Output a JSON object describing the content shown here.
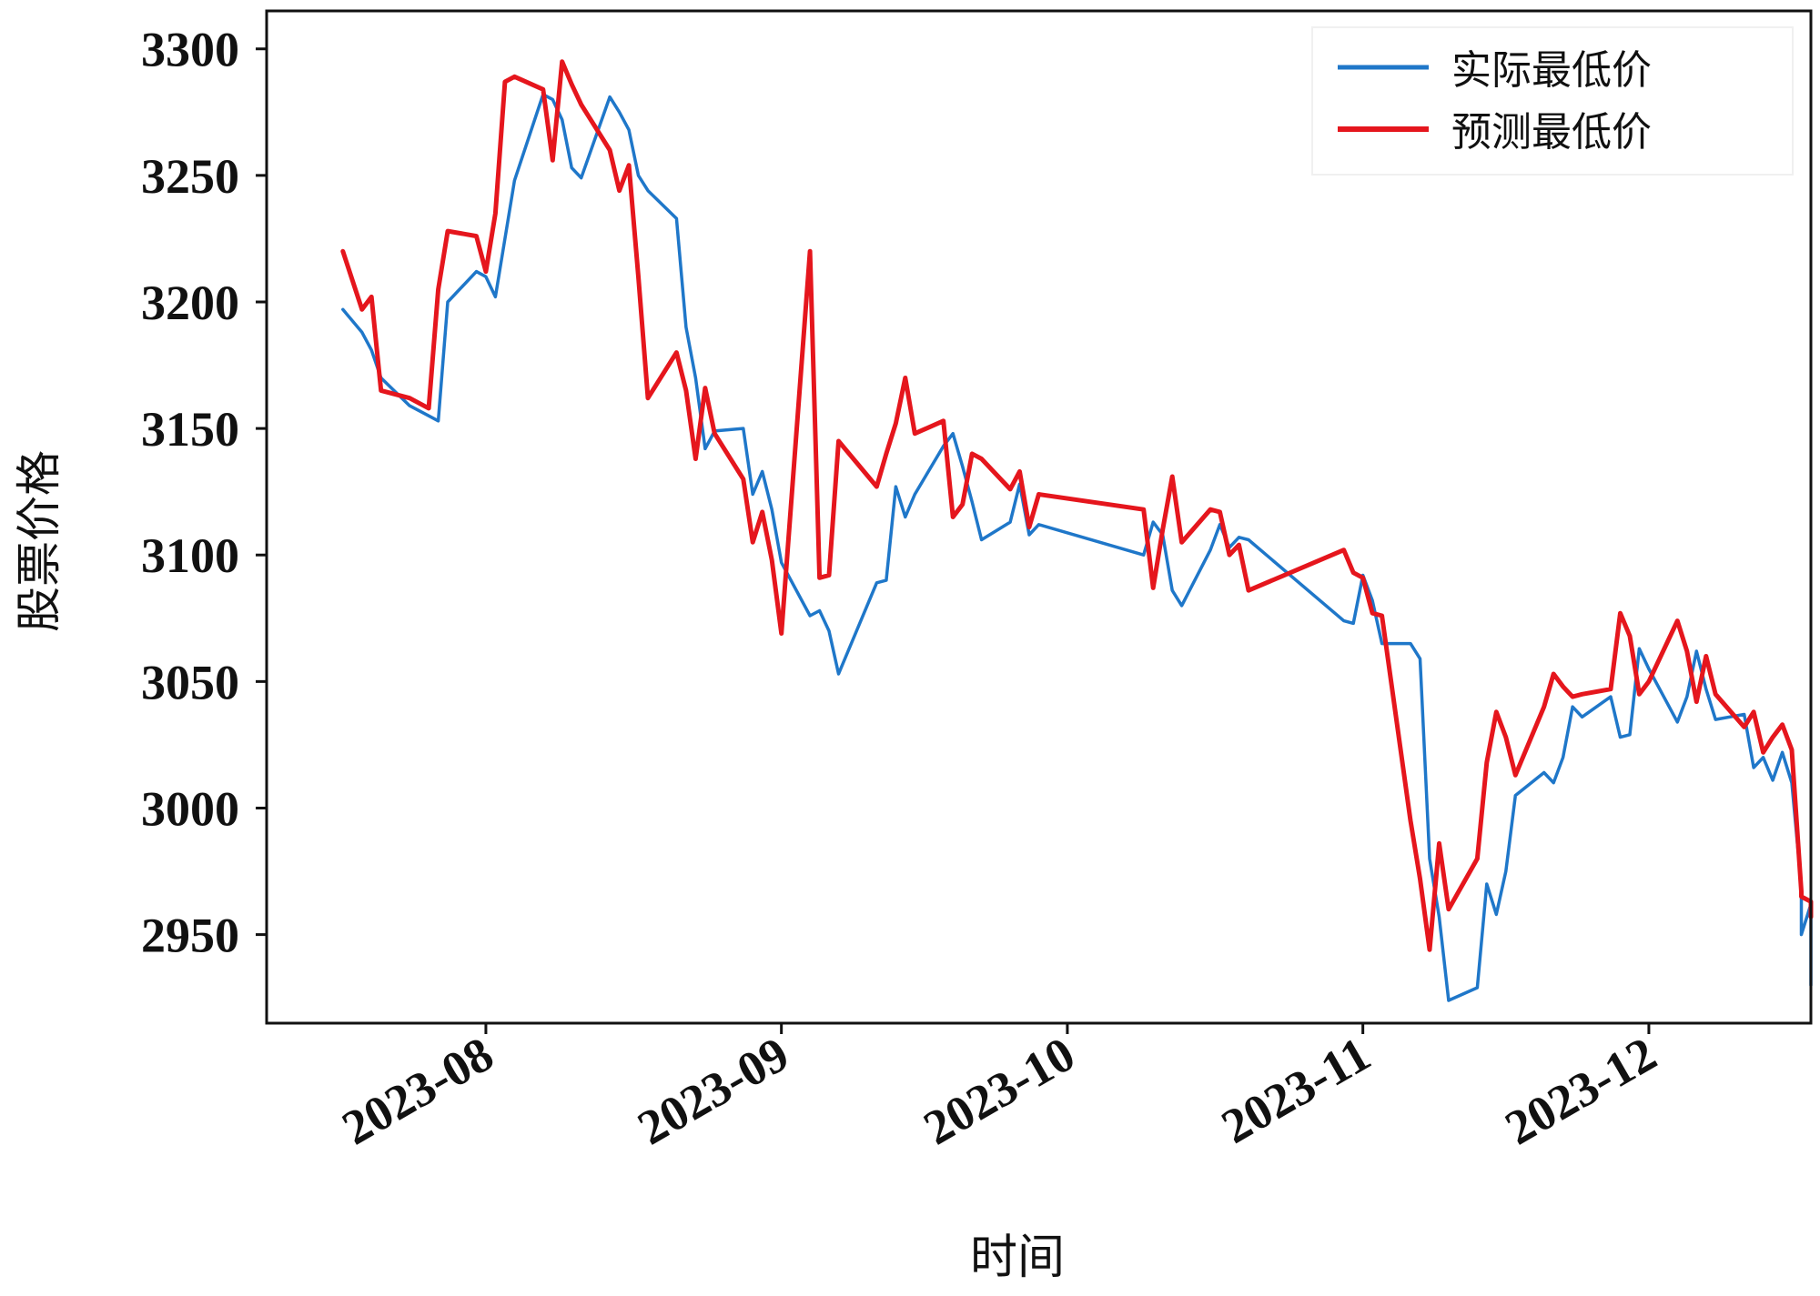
{
  "chart_data": {
    "type": "line",
    "title": "",
    "xlabel": "时间",
    "ylabel": "股票价格",
    "ylim": [
      2915,
      3315
    ],
    "xlim": [
      "2023-07-09",
      "2023-12-18"
    ],
    "grid": false,
    "legend_position": "top-right",
    "y_ticks": [
      2950,
      3000,
      3050,
      3100,
      3150,
      3200,
      3250,
      3300
    ],
    "x_ticks": [
      {
        "date": "2023-08-01",
        "label": "2023-08"
      },
      {
        "date": "2023-09-01",
        "label": "2023-09"
      },
      {
        "date": "2023-10-01",
        "label": "2023-10"
      },
      {
        "date": "2023-11-01",
        "label": "2023-11"
      },
      {
        "date": "2023-12-01",
        "label": "2023-12"
      }
    ],
    "series": [
      {
        "name": "实际最低价",
        "color": "#1f77c9",
        "points": [
          [
            "2023-07-17",
            3197
          ],
          [
            "2023-07-19",
            3188
          ],
          [
            "2023-07-20",
            3181
          ],
          [
            "2023-07-21",
            3170
          ],
          [
            "2023-07-24",
            3159
          ],
          [
            "2023-07-26",
            3155
          ],
          [
            "2023-07-27",
            3153
          ],
          [
            "2023-07-28",
            3200
          ],
          [
            "2023-07-31",
            3212
          ],
          [
            "2023-08-01",
            3210
          ],
          [
            "2023-08-02",
            3202
          ],
          [
            "2023-08-03",
            3225
          ],
          [
            "2023-08-04",
            3248
          ],
          [
            "2023-08-07",
            3282
          ],
          [
            "2023-08-08",
            3280
          ],
          [
            "2023-08-09",
            3272
          ],
          [
            "2023-08-10",
            3253
          ],
          [
            "2023-08-11",
            3249
          ],
          [
            "2023-08-14",
            3281
          ],
          [
            "2023-08-15",
            3275
          ],
          [
            "2023-08-16",
            3268
          ],
          [
            "2023-08-17",
            3250
          ],
          [
            "2023-08-18",
            3244
          ],
          [
            "2023-08-21",
            3233
          ],
          [
            "2023-08-22",
            3190
          ],
          [
            "2023-08-23",
            3170
          ],
          [
            "2023-08-24",
            3142
          ],
          [
            "2023-08-25",
            3149
          ],
          [
            "2023-08-28",
            3150
          ],
          [
            "2023-08-29",
            3124
          ],
          [
            "2023-08-30",
            3133
          ],
          [
            "2023-08-31",
            3118
          ],
          [
            "2023-09-01",
            3097
          ],
          [
            "2023-09-04",
            3076
          ],
          [
            "2023-09-05",
            3078
          ],
          [
            "2023-09-06",
            3070
          ],
          [
            "2023-09-07",
            3053
          ],
          [
            "2023-09-11",
            3089
          ],
          [
            "2023-09-12",
            3090
          ],
          [
            "2023-09-13",
            3127
          ],
          [
            "2023-09-14",
            3115
          ],
          [
            "2023-09-15",
            3124
          ],
          [
            "2023-09-18",
            3143
          ],
          [
            "2023-09-19",
            3148
          ],
          [
            "2023-09-20",
            3135
          ],
          [
            "2023-09-21",
            3121
          ],
          [
            "2023-09-22",
            3106
          ],
          [
            "2023-09-25",
            3113
          ],
          [
            "2023-09-26",
            3128
          ],
          [
            "2023-09-27",
            3108
          ],
          [
            "2023-09-28",
            3112
          ],
          [
            "2023-10-09",
            3100
          ],
          [
            "2023-10-10",
            3113
          ],
          [
            "2023-10-11",
            3108
          ],
          [
            "2023-10-12",
            3086
          ],
          [
            "2023-10-13",
            3080
          ],
          [
            "2023-10-16",
            3102
          ],
          [
            "2023-10-17",
            3112
          ],
          [
            "2023-10-18",
            3103
          ],
          [
            "2023-10-19",
            3107
          ],
          [
            "2023-10-20",
            3106
          ],
          [
            "2023-10-30",
            3074
          ],
          [
            "2023-10-31",
            3073
          ],
          [
            "2023-11-01",
            3092
          ],
          [
            "2023-11-02",
            3082
          ],
          [
            "2023-11-03",
            3065
          ],
          [
            "2023-11-06",
            3065
          ],
          [
            "2023-11-07",
            3059
          ],
          [
            "2023-11-08",
            2980
          ],
          [
            "2023-11-09",
            2957
          ],
          [
            "2023-11-10",
            2924
          ],
          [
            "2023-11-13",
            2929
          ],
          [
            "2023-11-14",
            2970
          ],
          [
            "2023-11-15",
            2958
          ],
          [
            "2023-11-16",
            2975
          ],
          [
            "2023-11-17",
            3005
          ],
          [
            "2023-11-20",
            3014
          ],
          [
            "2023-11-21",
            3010
          ],
          [
            "2023-11-22",
            3020
          ],
          [
            "2023-11-23",
            3040
          ],
          [
            "2023-11-24",
            3036
          ],
          [
            "2023-11-27",
            3044
          ],
          [
            "2023-11-28",
            3028
          ],
          [
            "2023-11-29",
            3029
          ],
          [
            "2023-11-30",
            3063
          ],
          [
            "2023-12-01",
            3055
          ],
          [
            "2023-12-04",
            3034
          ],
          [
            "2023-12-05",
            3044
          ],
          [
            "2023-12-06",
            3062
          ],
          [
            "2023-12-07",
            3047
          ],
          [
            "2023-12-08",
            3035
          ],
          [
            "2023-12-11",
            3037
          ],
          [
            "2023-12-12",
            3016
          ],
          [
            "2023-12-13",
            3020
          ],
          [
            "2023-12-14",
            3011
          ],
          [
            "2023-12-15",
            3022
          ],
          [
            "2023-12-16",
            3010
          ],
          [
            "2023-12-17",
            2969
          ],
          [
            "2023-12-17",
            2950
          ],
          [
            "2023-12-18",
            2962
          ],
          [
            "2023-12-18",
            2930
          ]
        ]
      },
      {
        "name": "预测最低价",
        "color": "#e5161d",
        "points": [
          [
            "2023-07-17",
            3220
          ],
          [
            "2023-07-19",
            3197
          ],
          [
            "2023-07-20",
            3202
          ],
          [
            "2023-07-21",
            3165
          ],
          [
            "2023-07-24",
            3162
          ],
          [
            "2023-07-26",
            3158
          ],
          [
            "2023-07-27",
            3205
          ],
          [
            "2023-07-28",
            3228
          ],
          [
            "2023-07-31",
            3226
          ],
          [
            "2023-08-01",
            3212
          ],
          [
            "2023-08-02",
            3235
          ],
          [
            "2023-08-03",
            3287
          ],
          [
            "2023-08-04",
            3289
          ],
          [
            "2023-08-07",
            3284
          ],
          [
            "2023-08-08",
            3256
          ],
          [
            "2023-08-09",
            3295
          ],
          [
            "2023-08-10",
            3286
          ],
          [
            "2023-08-11",
            3278
          ],
          [
            "2023-08-14",
            3260
          ],
          [
            "2023-08-15",
            3244
          ],
          [
            "2023-08-16",
            3254
          ],
          [
            "2023-08-17",
            3210
          ],
          [
            "2023-08-18",
            3162
          ],
          [
            "2023-08-21",
            3180
          ],
          [
            "2023-08-22",
            3165
          ],
          [
            "2023-08-23",
            3138
          ],
          [
            "2023-08-24",
            3166
          ],
          [
            "2023-08-25",
            3148
          ],
          [
            "2023-08-28",
            3130
          ],
          [
            "2023-08-29",
            3105
          ],
          [
            "2023-08-30",
            3117
          ],
          [
            "2023-08-31",
            3098
          ],
          [
            "2023-09-01",
            3069
          ],
          [
            "2023-09-04",
            3220
          ],
          [
            "2023-09-05",
            3091
          ],
          [
            "2023-09-06",
            3092
          ],
          [
            "2023-09-07",
            3145
          ],
          [
            "2023-09-11",
            3127
          ],
          [
            "2023-09-12",
            3140
          ],
          [
            "2023-09-13",
            3152
          ],
          [
            "2023-09-14",
            3170
          ],
          [
            "2023-09-15",
            3148
          ],
          [
            "2023-09-18",
            3153
          ],
          [
            "2023-09-19",
            3115
          ],
          [
            "2023-09-20",
            3120
          ],
          [
            "2023-09-21",
            3140
          ],
          [
            "2023-09-22",
            3138
          ],
          [
            "2023-09-25",
            3126
          ],
          [
            "2023-09-26",
            3133
          ],
          [
            "2023-09-27",
            3111
          ],
          [
            "2023-09-28",
            3124
          ],
          [
            "2023-10-09",
            3118
          ],
          [
            "2023-10-10",
            3087
          ],
          [
            "2023-10-11",
            3110
          ],
          [
            "2023-10-12",
            3131
          ],
          [
            "2023-10-13",
            3105
          ],
          [
            "2023-10-16",
            3118
          ],
          [
            "2023-10-17",
            3117
          ],
          [
            "2023-10-18",
            3100
          ],
          [
            "2023-10-19",
            3104
          ],
          [
            "2023-10-20",
            3086
          ],
          [
            "2023-10-30",
            3102
          ],
          [
            "2023-10-31",
            3093
          ],
          [
            "2023-11-01",
            3091
          ],
          [
            "2023-11-02",
            3077
          ],
          [
            "2023-11-03",
            3076
          ],
          [
            "2023-11-06",
            2995
          ],
          [
            "2023-11-07",
            2972
          ],
          [
            "2023-11-08",
            2944
          ],
          [
            "2023-11-09",
            2986
          ],
          [
            "2023-11-10",
            2960
          ],
          [
            "2023-11-13",
            2980
          ],
          [
            "2023-11-14",
            3018
          ],
          [
            "2023-11-15",
            3038
          ],
          [
            "2023-11-16",
            3028
          ],
          [
            "2023-11-17",
            3013
          ],
          [
            "2023-11-20",
            3040
          ],
          [
            "2023-11-21",
            3053
          ],
          [
            "2023-11-22",
            3048
          ],
          [
            "2023-11-23",
            3044
          ],
          [
            "2023-11-24",
            3045
          ],
          [
            "2023-11-27",
            3047
          ],
          [
            "2023-11-28",
            3077
          ],
          [
            "2023-11-29",
            3068
          ],
          [
            "2023-11-30",
            3045
          ],
          [
            "2023-12-01",
            3050
          ],
          [
            "2023-12-04",
            3074
          ],
          [
            "2023-12-05",
            3062
          ],
          [
            "2023-12-06",
            3042
          ],
          [
            "2023-12-07",
            3060
          ],
          [
            "2023-12-08",
            3045
          ],
          [
            "2023-12-11",
            3032
          ],
          [
            "2023-12-12",
            3038
          ],
          [
            "2023-12-13",
            3022
          ],
          [
            "2023-12-14",
            3028
          ],
          [
            "2023-12-15",
            3033
          ],
          [
            "2023-12-16",
            3023
          ],
          [
            "2023-12-17",
            2967
          ],
          [
            "2023-12-17",
            2965
          ],
          [
            "2023-12-18",
            2963
          ],
          [
            "2023-12-18",
            2957
          ]
        ]
      }
    ]
  }
}
